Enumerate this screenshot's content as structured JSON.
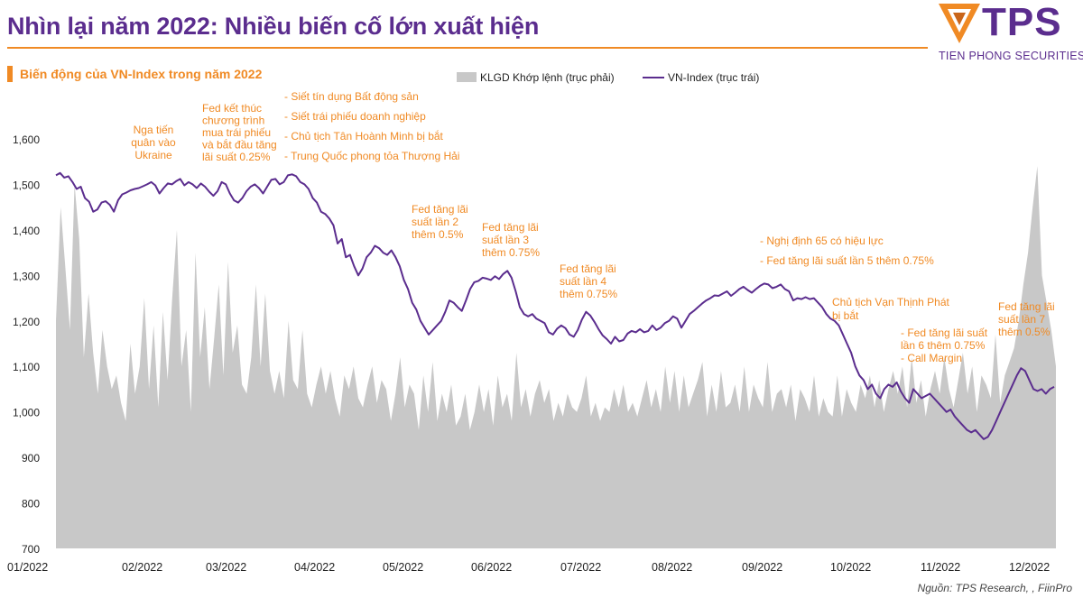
{
  "header": {
    "title": "Nhìn lại năm 2022: Nhiều biến cố lớn xuất hiện",
    "logo_text": "TPS",
    "logo_subtitle": "TIEN PHONG SECURITIES"
  },
  "source": "Nguồn: TPS Research, , FiinPro",
  "colors": {
    "brand_purple": "#5b2d8e",
    "accent_orange": "#f08a24",
    "volume_gray": "#c8c8c8",
    "line_purple": "#5b2d8e"
  },
  "chart_data": {
    "type": "line",
    "title": "Biến động của VN-Index trong năm 2022",
    "legend_position": "top",
    "x_tick_labels": [
      "01/2022",
      "02/2022",
      "03/2022",
      "04/2022",
      "05/2022",
      "06/2022",
      "07/2022",
      "08/2022",
      "09/2022",
      "10/2022",
      "11/2022",
      "12/2022"
    ],
    "y_left": {
      "ticks": [
        "700",
        "800",
        "900",
        "1,000",
        "1,100",
        "1,200",
        "1,300",
        "1,400",
        "1,500",
        "1,600"
      ],
      "min": 700,
      "max": 1600,
      "step": 100
    },
    "grid": false,
    "series": [
      {
        "name": "KLGD Khớp lệnh (trục phải)",
        "type": "area",
        "axis": "right",
        "color": "#c8c8c8",
        "values": [
          1200,
          1450,
          1320,
          1180,
          1500,
          1380,
          1120,
          1260,
          1130,
          1040,
          1180,
          1100,
          1050,
          1080,
          1020,
          980,
          1150,
          1040,
          1100,
          1250,
          1050,
          1190,
          1010,
          1220,
          1070,
          1250,
          1400,
          1100,
          1180,
          1000,
          1350,
          1120,
          1230,
          1050,
          1160,
          1280,
          1080,
          1330,
          1130,
          1190,
          1060,
          1040,
          1120,
          1280,
          1100,
          1260,
          1090,
          1040,
          1090,
          1030,
          1200,
          1070,
          1050,
          1180,
          1040,
          1010,
          1060,
          1100,
          1040,
          1090,
          1030,
          990,
          1080,
          1050,
          1100,
          1030,
          1010,
          1060,
          1100,
          1020,
          1070,
          1050,
          980,
          1040,
          1120,
          1010,
          1060,
          1040,
          960,
          1080,
          1000,
          1110,
          980,
          1040,
          1000,
          1060,
          970,
          990,
          1040,
          960,
          1000,
          1060,
          1000,
          1050,
          970,
          1080,
          1010,
          1040,
          980,
          1130,
          1010,
          1050,
          990,
          1040,
          1070,
          1020,
          1050,
          980,
          1020,
          990,
          1040,
          1010,
          1000,
          1030,
          1080,
          990,
          1020,
          980,
          1010,
          1000,
          1050,
          1010,
          1060,
          1000,
          1020,
          990,
          1030,
          1070,
          1010,
          1050,
          1000,
          1100,
          1020,
          1090,
          1000,
          1080,
          1010,
          1040,
          1070,
          1110,
          990,
          1060,
          1000,
          1090,
          1010,
          1020,
          1060,
          1000,
          1100,
          1000,
          1060,
          1030,
          1010,
          1110,
          1000,
          1040,
          1050,
          1010,
          1060,
          980,
          1050,
          1030,
          1000,
          1080,
          990,
          1030,
          1000,
          990,
          1080,
          990,
          1050,
          1020,
          1000,
          1060,
          1030,
          1080,
          1010,
          1070,
          1000,
          1050,
          1090,
          1040,
          1100,
          1010,
          1120,
          1020,
          1070,
          990,
          1050,
          1090,
          1040,
          1120,
          1050,
          1010,
          1070,
          1130,
          1040,
          1100,
          1000,
          1080,
          1060,
          1030,
          1170,
          1020,
          1080,
          1110,
          1140,
          1200,
          1280,
          1350,
          1450,
          1540,
          1300,
          1240,
          1180,
          1100
        ]
      },
      {
        "name": "VN-Index (trục trái)",
        "type": "line",
        "axis": "left",
        "color": "#5b2d8e",
        "values": [
          1520,
          1525,
          1515,
          1518,
          1505,
          1490,
          1495,
          1470,
          1462,
          1440,
          1445,
          1460,
          1463,
          1455,
          1440,
          1465,
          1478,
          1482,
          1487,
          1490,
          1492,
          1496,
          1500,
          1505,
          1498,
          1480,
          1492,
          1502,
          1500,
          1507,
          1512,
          1498,
          1505,
          1500,
          1492,
          1502,
          1495,
          1484,
          1475,
          1485,
          1505,
          1500,
          1480,
          1465,
          1460,
          1470,
          1485,
          1495,
          1500,
          1492,
          1480,
          1495,
          1510,
          1512,
          1500,
          1505,
          1520,
          1522,
          1518,
          1505,
          1500,
          1490,
          1470,
          1460,
          1440,
          1435,
          1425,
          1410,
          1370,
          1380,
          1340,
          1345,
          1320,
          1300,
          1315,
          1340,
          1350,
          1365,
          1360,
          1350,
          1345,
          1355,
          1340,
          1320,
          1290,
          1270,
          1240,
          1225,
          1200,
          1185,
          1170,
          1180,
          1190,
          1200,
          1220,
          1245,
          1240,
          1230,
          1222,
          1245,
          1270,
          1285,
          1288,
          1295,
          1293,
          1290,
          1298,
          1292,
          1303,
          1310,
          1295,
          1265,
          1230,
          1215,
          1210,
          1215,
          1205,
          1200,
          1195,
          1175,
          1170,
          1183,
          1190,
          1184,
          1170,
          1165,
          1180,
          1203,
          1220,
          1212,
          1198,
          1182,
          1168,
          1160,
          1150,
          1165,
          1155,
          1158,
          1172,
          1178,
          1175,
          1182,
          1175,
          1178,
          1190,
          1180,
          1185,
          1195,
          1200,
          1210,
          1205,
          1185,
          1200,
          1215,
          1222,
          1230,
          1238,
          1245,
          1250,
          1256,
          1255,
          1260,
          1265,
          1255,
          1262,
          1270,
          1275,
          1268,
          1262,
          1270,
          1277,
          1282,
          1280,
          1272,
          1275,
          1280,
          1270,
          1265,
          1245,
          1250,
          1248,
          1252,
          1248,
          1250,
          1240,
          1230,
          1215,
          1205,
          1200,
          1190,
          1170,
          1150,
          1130,
          1100,
          1080,
          1070,
          1050,
          1060,
          1040,
          1030,
          1050,
          1060,
          1055,
          1065,
          1045,
          1030,
          1020,
          1050,
          1040,
          1030,
          1035,
          1040,
          1030,
          1020,
          1010,
          1000,
          1005,
          990,
          980,
          970,
          960,
          955,
          960,
          950,
          940,
          945,
          960,
          980,
          1000,
          1020,
          1040,
          1060,
          1080,
          1096,
          1090,
          1070,
          1050,
          1046,
          1050,
          1040,
          1050,
          1055
        ]
      }
    ],
    "annotations": [
      {
        "text": "Nga tiến\nquân vào\nUkraine"
      },
      {
        "text": "Fed  kết thúc\nchương trình\nmua trái phiếu\nvà bắt đầu tăng\nlãi suất 0.25%"
      },
      {
        "text": "- Siết tín dụng Bất động sản\n- Siết trái phiếu doanh nghiệp\n- Chủ tịch Tân Hoành Minh bị bắt\n- Trung Quốc phong tỏa Thượng Hải"
      },
      {
        "text": "Fed tăng lãi\nsuất lần 2\nthêm 0.5%"
      },
      {
        "text": "Fed tăng lãi\nsuất lần 3\nthêm 0.75%"
      },
      {
        "text": "Fed tăng lãi\nsuất lần 4\nthêm 0.75%"
      },
      {
        "text": "- Nghị định 65 có hiệu lực\n- Fed tăng lãi suất lần 5 thêm 0.75%"
      },
      {
        "text": "Chủ tịch Vạn Thịnh Phát\nbị bắt"
      },
      {
        "text": "- Fed tăng lãi suất\nlần 6 thêm 0.75%\n- Call Margin"
      },
      {
        "text": "Fed tăng lãi\nsuất lần 7\nthêm 0.5%"
      }
    ]
  }
}
